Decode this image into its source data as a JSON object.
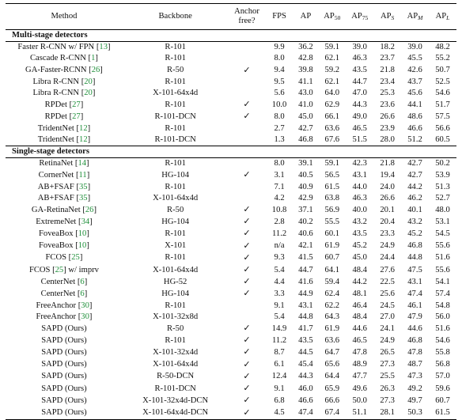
{
  "header": {
    "method": "Method",
    "backbone": "Backbone",
    "anchor_line1": "Anchor",
    "anchor_line2": "free?",
    "fps": "FPS",
    "ap": "AP",
    "ap50": "AP50",
    "ap75": "AP75",
    "aps": "APS",
    "apm": "APM",
    "apl": "APL"
  },
  "check_mark": "✓",
  "sections": [
    {
      "title": "Multi-stage detectors",
      "rows": [
        {
          "method": "Faster R-CNN w/ FPN",
          "ref": "13",
          "suffix": "",
          "backbone": "R-101",
          "anchor_free": false,
          "fps": "9.9",
          "ap": "36.2",
          "ap50": "59.1",
          "ap75": "39.0",
          "aps": "18.2",
          "apm": "39.0",
          "apl": "48.2"
        },
        {
          "method": "Cascade R-CNN",
          "ref": "1",
          "suffix": "",
          "backbone": "R-101",
          "anchor_free": false,
          "fps": "8.0",
          "ap": "42.8",
          "ap50": "62.1",
          "ap75": "46.3",
          "aps": "23.7",
          "apm": "45.5",
          "apl": "55.2"
        },
        {
          "method": "GA-Faster-RCNN",
          "ref": "26",
          "suffix": "",
          "backbone": "R-50",
          "anchor_free": true,
          "fps": "9.4",
          "ap": "39.8",
          "ap50": "59.2",
          "ap75": "43.5",
          "aps": "21.8",
          "apm": "42.6",
          "apl": "50.7"
        },
        {
          "method": "Libra R-CNN",
          "ref": "20",
          "suffix": "",
          "backbone": "R-101",
          "anchor_free": false,
          "fps": "9.5",
          "ap": "41.1",
          "ap50": "62.1",
          "ap75": "44.7",
          "aps": "23.4",
          "apm": "43.7",
          "apl": "52.5"
        },
        {
          "method": "Libra R-CNN",
          "ref": "20",
          "suffix": "",
          "backbone": "X-101-64x4d",
          "anchor_free": false,
          "fps": "5.6",
          "ap": "43.0",
          "ap50": "64.0",
          "ap75": "47.0",
          "aps": "25.3",
          "apm": "45.6",
          "apl": "54.6"
        },
        {
          "method": "RPDet",
          "ref": "27",
          "suffix": "",
          "backbone": "R-101",
          "anchor_free": true,
          "fps": "10.0",
          "ap": "41.0",
          "ap50": "62.9",
          "ap75": "44.3",
          "aps": "23.6",
          "apm": "44.1",
          "apl": "51.7"
        },
        {
          "method": "RPDet",
          "ref": "27",
          "suffix": "",
          "backbone": "R-101-DCN",
          "anchor_free": true,
          "fps": "8.0",
          "ap": "45.0",
          "ap50": "66.1",
          "ap75": "49.0",
          "aps": "26.6",
          "apm": "48.6",
          "apl": "57.5"
        },
        {
          "method": "TridentNet",
          "ref": "12",
          "suffix": "",
          "backbone": "R-101",
          "anchor_free": false,
          "fps": "2.7",
          "ap": "42.7",
          "ap50": "63.6",
          "ap75": "46.5",
          "aps": "23.9",
          "apm": "46.6",
          "apl": "56.6"
        },
        {
          "method": "TridentNet",
          "ref": "12",
          "suffix": "",
          "backbone": "R-101-DCN",
          "anchor_free": false,
          "fps": "1.3",
          "ap": "46.8",
          "ap50": "67.6",
          "ap75": "51.5",
          "aps": "28.0",
          "apm": "51.2",
          "apl": "60.5"
        }
      ]
    },
    {
      "title": "Single-stage detectors",
      "rows": [
        {
          "method": "RetinaNet",
          "ref": "14",
          "suffix": "",
          "backbone": "R-101",
          "anchor_free": false,
          "fps": "8.0",
          "ap": "39.1",
          "ap50": "59.1",
          "ap75": "42.3",
          "aps": "21.8",
          "apm": "42.7",
          "apl": "50.2"
        },
        {
          "method": "CornerNet",
          "ref": "11",
          "suffix": "",
          "backbone": "HG-104",
          "anchor_free": true,
          "fps": "3.1",
          "ap": "40.5",
          "ap50": "56.5",
          "ap75": "43.1",
          "aps": "19.4",
          "apm": "42.7",
          "apl": "53.9"
        },
        {
          "method": "AB+FSAF",
          "ref": "35",
          "suffix": "",
          "backbone": "R-101",
          "anchor_free": false,
          "fps": "7.1",
          "ap": "40.9",
          "ap50": "61.5",
          "ap75": "44.0",
          "aps": "24.0",
          "apm": "44.2",
          "apl": "51.3"
        },
        {
          "method": "AB+FSAF",
          "ref": "35",
          "suffix": "",
          "backbone": "X-101-64x4d",
          "anchor_free": false,
          "fps": "4.2",
          "ap": "42.9",
          "ap50": "63.8",
          "ap75": "46.3",
          "aps": "26.6",
          "apm": "46.2",
          "apl": "52.7"
        },
        {
          "method": "GA-RetinaNet",
          "ref": "26",
          "suffix": "",
          "backbone": "R-50",
          "anchor_free": true,
          "fps": "10.8",
          "ap": "37.1",
          "ap50": "56.9",
          "ap75": "40.0",
          "aps": "20.1",
          "apm": "40.1",
          "apl": "48.0"
        },
        {
          "method": "ExtremeNet",
          "ref": "34",
          "suffix": "",
          "backbone": "HG-104",
          "anchor_free": true,
          "fps": "2.8",
          "ap": "40.2",
          "ap50": "55.5",
          "ap75": "43.2",
          "aps": "20.4",
          "apm": "43.2",
          "apl": "53.1"
        },
        {
          "method": "FoveaBox",
          "ref": "10",
          "suffix": "",
          "backbone": "R-101",
          "anchor_free": true,
          "fps": "11.2",
          "ap": "40.6",
          "ap50": "60.1",
          "ap75": "43.5",
          "aps": "23.3",
          "apm": "45.2",
          "apl": "54.5"
        },
        {
          "method": "FoveaBox",
          "ref": "10",
          "suffix": "",
          "backbone": "X-101",
          "anchor_free": true,
          "fps": "n/a",
          "ap": "42.1",
          "ap50": "61.9",
          "ap75": "45.2",
          "aps": "24.9",
          "apm": "46.8",
          "apl": "55.6"
        },
        {
          "method": "FCOS",
          "ref": "25",
          "suffix": "",
          "backbone": "R-101",
          "anchor_free": true,
          "fps": "9.3",
          "ap": "41.5",
          "ap50": "60.7",
          "ap75": "45.0",
          "aps": "24.4",
          "apm": "44.8",
          "apl": "51.6"
        },
        {
          "method": "FCOS",
          "ref": "25",
          "suffix": " w/ imprv",
          "backbone": "X-101-64x4d",
          "anchor_free": true,
          "fps": "5.4",
          "ap": "44.7",
          "ap50": "64.1",
          "ap75": "48.4",
          "aps": "27.6",
          "apm": "47.5",
          "apl": "55.6"
        },
        {
          "method": "CenterNet",
          "ref": "6",
          "suffix": "",
          "backbone": "HG-52",
          "anchor_free": true,
          "fps": "4.4",
          "ap": "41.6",
          "ap50": "59.4",
          "ap75": "44.2",
          "aps": "22.5",
          "apm": "43.1",
          "apl": "54.1"
        },
        {
          "method": "CenterNet",
          "ref": "6",
          "suffix": "",
          "backbone": "HG-104",
          "anchor_free": true,
          "fps": "3.3",
          "ap": "44.9",
          "ap50": "62.4",
          "ap75": "48.1",
          "aps": "25.6",
          "apm": "47.4",
          "apl": "57.4"
        },
        {
          "method": "FreeAnchor",
          "ref": "30",
          "suffix": "",
          "backbone": "R-101",
          "anchor_free": false,
          "fps": "9.1",
          "ap": "43.1",
          "ap50": "62.2",
          "ap75": "46.4",
          "aps": "24.5",
          "apm": "46.1",
          "apl": "54.8"
        },
        {
          "method": "FreeAnchor",
          "ref": "30",
          "suffix": "",
          "backbone": "X-101-32x8d",
          "anchor_free": false,
          "fps": "5.4",
          "ap": "44.8",
          "ap50": "64.3",
          "ap75": "48.4",
          "aps": "27.0",
          "apm": "47.9",
          "apl": "56.0"
        },
        {
          "method": "SAPD (Ours)",
          "ref": "",
          "suffix": "",
          "backbone": "R-50",
          "anchor_free": true,
          "fps": "14.9",
          "ap": "41.7",
          "ap50": "61.9",
          "ap75": "44.6",
          "aps": "24.1",
          "apm": "44.6",
          "apl": "51.6"
        },
        {
          "method": "SAPD (Ours)",
          "ref": "",
          "suffix": "",
          "backbone": "R-101",
          "anchor_free": true,
          "fps": "11.2",
          "ap": "43.5",
          "ap50": "63.6",
          "ap75": "46.5",
          "aps": "24.9",
          "apm": "46.8",
          "apl": "54.6"
        },
        {
          "method": "SAPD (Ours)",
          "ref": "",
          "suffix": "",
          "backbone": "X-101-32x4d",
          "anchor_free": true,
          "fps": "8.7",
          "ap": "44.5",
          "ap50": "64.7",
          "ap75": "47.8",
          "aps": "26.5",
          "apm": "47.8",
          "apl": "55.8"
        },
        {
          "method": "SAPD (Ours)",
          "ref": "",
          "suffix": "",
          "backbone": "X-101-64x4d",
          "anchor_free": true,
          "fps": "6.1",
          "ap": "45.4",
          "ap50": "65.6",
          "ap75": "48.9",
          "aps": "27.3",
          "apm": "48.7",
          "apl": "56.8"
        },
        {
          "method": "SAPD (Ours)",
          "ref": "",
          "suffix": "",
          "backbone": "R-50-DCN",
          "anchor_free": true,
          "fps": "12.4",
          "ap": "44.3",
          "ap50": "64.4",
          "ap75": "47.7",
          "aps": "25.5",
          "apm": "47.3",
          "apl": "57.0"
        },
        {
          "method": "SAPD (Ours)",
          "ref": "",
          "suffix": "",
          "backbone": "R-101-DCN",
          "anchor_free": true,
          "fps": "9.1",
          "ap": "46.0",
          "ap50": "65.9",
          "ap75": "49.6",
          "aps": "26.3",
          "apm": "49.2",
          "apl": "59.6"
        },
        {
          "method": "SAPD (Ours)",
          "ref": "",
          "suffix": "",
          "backbone": "X-101-32x4d-DCN",
          "anchor_free": true,
          "fps": "6.8",
          "ap": "46.6",
          "ap50": "66.6",
          "ap75": "50.0",
          "aps": "27.3",
          "apm": "49.7",
          "apl": "60.7"
        },
        {
          "method": "SAPD (Ours)",
          "ref": "",
          "suffix": "",
          "backbone": "X-101-64x4d-DCN",
          "anchor_free": true,
          "fps": "4.5",
          "ap": "47.4",
          "ap50": "67.4",
          "ap75": "51.1",
          "aps": "28.1",
          "apm": "50.3",
          "apl": "61.5"
        }
      ]
    }
  ]
}
